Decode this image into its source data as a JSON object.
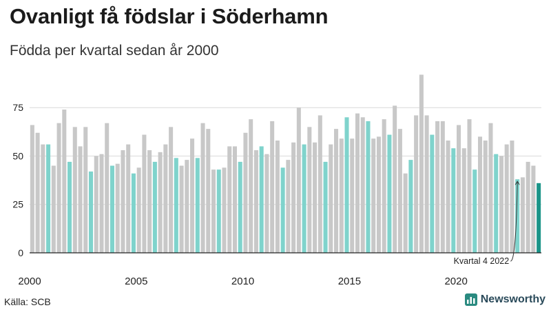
{
  "title": "Ovanligt få födslar i Söderhamn",
  "subtitle": "Födda per kvartal sedan år 2000",
  "source": "Källa: SCB",
  "brand": "Newsworthy",
  "colors": {
    "gray": "#c8c8c8",
    "q4": "#7fd3cc",
    "latest": "#1a9488",
    "axis": "#222222",
    "grid": "#d9d9d9",
    "brand": "#2a4a5a"
  },
  "chart_data": {
    "type": "bar",
    "ylim": [
      0,
      95
    ],
    "yticks": [
      0,
      25,
      50,
      75
    ],
    "xticks": [
      {
        "label": "2000",
        "index": 0
      },
      {
        "label": "2005",
        "index": 20
      },
      {
        "label": "2010",
        "index": 40
      },
      {
        "label": "2015",
        "index": 60
      },
      {
        "label": "2020",
        "index": 80
      }
    ],
    "start_year": 2000,
    "highlight_quarter": 4,
    "values": [
      66,
      62,
      56,
      56,
      45,
      67,
      74,
      47,
      65,
      55,
      65,
      42,
      50,
      51,
      67,
      45,
      46,
      53,
      56,
      41,
      44,
      61,
      53,
      47,
      52,
      56,
      65,
      49,
      45,
      48,
      59,
      49,
      67,
      64,
      43,
      43,
      44,
      55,
      55,
      47,
      62,
      69,
      53,
      55,
      51,
      68,
      58,
      44,
      48,
      57,
      75,
      56,
      65,
      57,
      71,
      47,
      56,
      64,
      59,
      70,
      59,
      72,
      70,
      68,
      59,
      60,
      69,
      61,
      76,
      64,
      41,
      48,
      71,
      92,
      71,
      61,
      68,
      68,
      58,
      54,
      66,
      54,
      69,
      43,
      60,
      58,
      67,
      51,
      50,
      56,
      58,
      38,
      39,
      47,
      45,
      36
    ],
    "annotation": {
      "text": "Kvartal 4 2022",
      "index": 91
    }
  }
}
